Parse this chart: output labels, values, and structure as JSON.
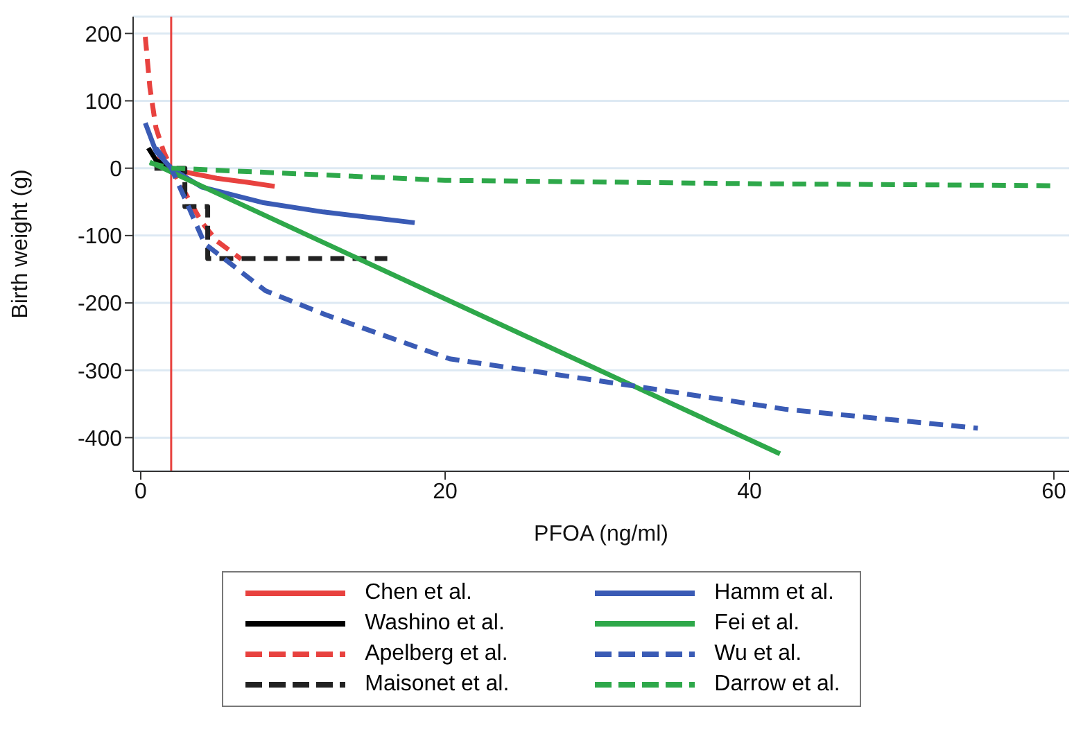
{
  "chart_data": {
    "type": "line",
    "xlabel": "PFOA (ng/ml)",
    "ylabel": "Birth weight (g)",
    "xlim": [
      -0.5,
      61
    ],
    "ylim": [
      -450,
      225
    ],
    "xticks": [
      0,
      20,
      40,
      60
    ],
    "yticks": [
      -400,
      -300,
      -200,
      -100,
      0,
      100,
      200
    ],
    "grid": "y",
    "legend": "bottom",
    "marker": "none",
    "ref_lines": [
      {
        "axis": "x",
        "value": 2,
        "color": "#e8423f"
      }
    ],
    "series": [
      {
        "name": "Chen et al.",
        "color": "#e8423f",
        "line_style": "solid",
        "x": [
          1,
          2,
          3,
          5,
          7,
          8.8
        ],
        "values": [
          15,
          0,
          -6,
          -15,
          -21,
          -27
        ]
      },
      {
        "name": "Washino et al.",
        "color": "#000000",
        "line_style": "solid",
        "x": [
          0.5,
          1,
          2,
          3
        ],
        "values": [
          30,
          12,
          0,
          -8
        ]
      },
      {
        "name": "Apelberg et al.",
        "color": "#e8423f",
        "line_style": "dashed",
        "x": [
          0.3,
          0.6,
          1,
          1.5,
          2,
          3,
          4,
          5,
          6.6
        ],
        "values": [
          195,
          120,
          60,
          25,
          0,
          -40,
          -80,
          -108,
          -135
        ]
      },
      {
        "name": "Maisonet et al.",
        "color": "#222222",
        "line_style": "dashed",
        "type": "step",
        "x": [
          0.9,
          2.9,
          4.4,
          16.2
        ],
        "values": [
          0,
          -57,
          -134,
          -134
        ]
      },
      {
        "name": "Hamm et al.",
        "color": "#3a5bb5",
        "line_style": "solid",
        "x": [
          0.3,
          1,
          2,
          4,
          8,
          12,
          18
        ],
        "values": [
          67,
          25,
          0,
          -28,
          -51,
          -65,
          -81
        ]
      },
      {
        "name": "Fei et al.",
        "color": "#2ea84a",
        "line_style": "solid",
        "x": [
          0.6,
          42
        ],
        "values": [
          9,
          -424
        ]
      },
      {
        "name": "Wu et al.",
        "color": "#3a5bb5",
        "line_style": "dashed",
        "x": [
          1,
          2,
          3,
          4.2,
          8.2,
          12.2,
          20.3,
          32.3,
          42.4,
          55
        ],
        "values": [
          30,
          0,
          -50,
          -112,
          -182,
          -218,
          -283,
          -323,
          -358,
          -386
        ]
      },
      {
        "name": "Darrow et al.",
        "color": "#2ea84a",
        "line_style": "dashed",
        "x": [
          0.6,
          2,
          20,
          40,
          60
        ],
        "values": [
          8,
          0,
          -18,
          -23,
          -26
        ]
      }
    ]
  }
}
